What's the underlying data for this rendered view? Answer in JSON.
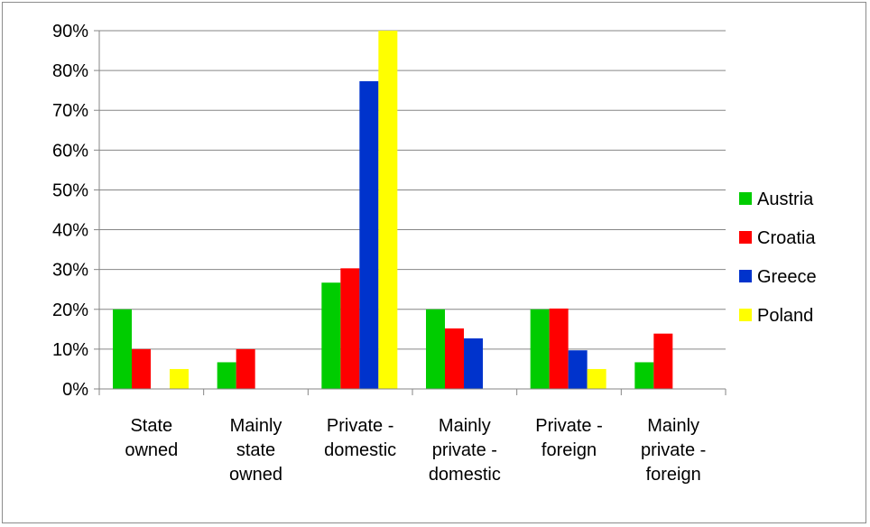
{
  "chart_data": {
    "type": "bar",
    "categories": [
      [
        "State",
        "owned"
      ],
      [
        "Mainly",
        "state",
        "owned"
      ],
      [
        "Private -",
        "domestic"
      ],
      [
        "Mainly",
        "private -",
        "domestic"
      ],
      [
        "Private -",
        "foreign"
      ],
      [
        "Mainly",
        "private -",
        "foreign"
      ]
    ],
    "series": [
      {
        "name": "Austria",
        "color": "#00cc00",
        "values": [
          20,
          6.7,
          26.7,
          20,
          20,
          6.7
        ]
      },
      {
        "name": "Croatia",
        "color": "#ff0000",
        "values": [
          10,
          10,
          30.3,
          15.2,
          20.2,
          13.9
        ]
      },
      {
        "name": "Greece",
        "color": "#0033cc",
        "values": [
          0,
          0,
          77.3,
          12.7,
          9.7,
          0
        ]
      },
      {
        "name": "Poland",
        "color": "#ffff00",
        "values": [
          5,
          0,
          90,
          0,
          5,
          0
        ]
      }
    ],
    "yticks": [
      "0%",
      "10%",
      "20%",
      "30%",
      "40%",
      "50%",
      "60%",
      "70%",
      "80%",
      "90%"
    ],
    "ylim": [
      0,
      90
    ],
    "y_unit": "%",
    "grid": true,
    "legend_position": "right",
    "title": "",
    "xlabel": "",
    "ylabel": ""
  }
}
